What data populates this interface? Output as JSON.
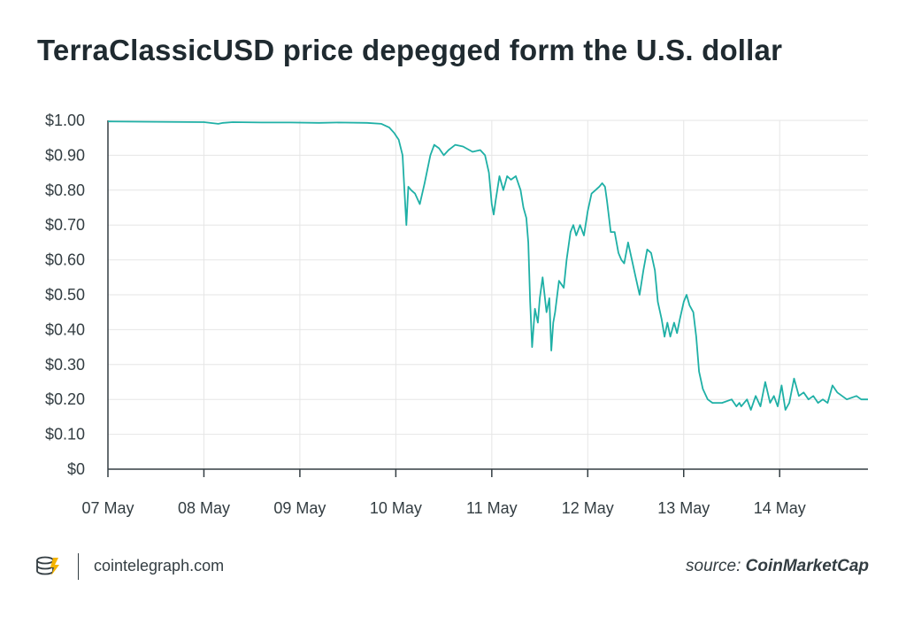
{
  "title": "TerraClassicUSD price depegged form the U.S. dollar",
  "colors": {
    "line": "#1fb0a6",
    "grid": "#e6e6e6",
    "axis": "#333d42",
    "text": "#1f2a30"
  },
  "footer": {
    "logo_icon": "cointelegraph-logo-icon",
    "site": "cointelegraph.com",
    "source_prefix": "source: ",
    "source_name": "CoinMarketCap"
  },
  "chart_data": {
    "type": "line",
    "title": "TerraClassicUSD price depegged form the U.S. dollar",
    "xlabel": "",
    "ylabel": "",
    "ylim": [
      0,
      1.0
    ],
    "xlim": [
      0,
      7.92
    ],
    "x_unit": "days since 07 May",
    "grid": true,
    "y_ticks": [
      0,
      0.1,
      0.2,
      0.3,
      0.4,
      0.5,
      0.6,
      0.7,
      0.8,
      0.9,
      1.0
    ],
    "y_tick_labels": [
      "$0",
      "$0.10",
      "$0.20",
      "$0.30",
      "$0.40",
      "$0.50",
      "$0.60",
      "$0.70",
      "$0.80",
      "$0.90",
      "$1.00"
    ],
    "x_ticks": [
      0,
      1,
      2,
      3,
      4,
      5,
      6,
      7
    ],
    "x_tick_labels": [
      "07 May",
      "08 May",
      "09 May",
      "10 May",
      "11 May",
      "12 May",
      "13 May",
      "14 May"
    ],
    "series": [
      {
        "name": "",
        "x": [
          0,
          0.5,
          1.0,
          1.15,
          1.2,
          1.3,
          1.6,
          1.9,
          2.2,
          2.4,
          2.7,
          2.85,
          2.93,
          2.98,
          3.03,
          3.07,
          3.09,
          3.11,
          3.13,
          3.16,
          3.2,
          3.25,
          3.3,
          3.36,
          3.4,
          3.45,
          3.5,
          3.55,
          3.62,
          3.7,
          3.8,
          3.88,
          3.93,
          3.97,
          4.0,
          4.02,
          4.04,
          4.08,
          4.12,
          4.16,
          4.2,
          4.25,
          4.3,
          4.33,
          4.36,
          4.38,
          4.4,
          4.42,
          4.45,
          4.48,
          4.5,
          4.53,
          4.55,
          4.57,
          4.6,
          4.62,
          4.64,
          4.66,
          4.7,
          4.75,
          4.78,
          4.82,
          4.85,
          4.88,
          4.92,
          4.96,
          5.0,
          5.04,
          5.08,
          5.12,
          5.15,
          5.18,
          5.2,
          5.24,
          5.28,
          5.32,
          5.35,
          5.38,
          5.42,
          5.46,
          5.5,
          5.54,
          5.58,
          5.62,
          5.66,
          5.7,
          5.73,
          5.77,
          5.8,
          5.83,
          5.86,
          5.9,
          5.93,
          5.96,
          6.0,
          6.03,
          6.06,
          6.1,
          6.13,
          6.16,
          6.2,
          6.25,
          6.3,
          6.4,
          6.5,
          6.55,
          6.58,
          6.6,
          6.63,
          6.66,
          6.7,
          6.75,
          6.8,
          6.85,
          6.9,
          6.94,
          6.98,
          7.02,
          7.06,
          7.1,
          7.15,
          7.2,
          7.25,
          7.3,
          7.35,
          7.4,
          7.45,
          7.5,
          7.55,
          7.6,
          7.7,
          7.8,
          7.85,
          7.92
        ],
        "values": [
          0.997,
          0.996,
          0.995,
          0.99,
          0.993,
          0.995,
          0.994,
          0.994,
          0.993,
          0.994,
          0.993,
          0.99,
          0.98,
          0.965,
          0.945,
          0.9,
          0.8,
          0.7,
          0.81,
          0.8,
          0.79,
          0.76,
          0.82,
          0.9,
          0.93,
          0.92,
          0.9,
          0.915,
          0.93,
          0.925,
          0.91,
          0.915,
          0.9,
          0.85,
          0.76,
          0.73,
          0.77,
          0.84,
          0.8,
          0.84,
          0.83,
          0.84,
          0.8,
          0.75,
          0.72,
          0.65,
          0.48,
          0.35,
          0.46,
          0.42,
          0.49,
          0.55,
          0.5,
          0.45,
          0.49,
          0.34,
          0.42,
          0.45,
          0.54,
          0.52,
          0.6,
          0.68,
          0.7,
          0.67,
          0.7,
          0.67,
          0.74,
          0.79,
          0.8,
          0.81,
          0.82,
          0.81,
          0.77,
          0.68,
          0.68,
          0.62,
          0.6,
          0.59,
          0.65,
          0.6,
          0.55,
          0.5,
          0.57,
          0.63,
          0.62,
          0.57,
          0.48,
          0.43,
          0.38,
          0.42,
          0.38,
          0.42,
          0.39,
          0.43,
          0.48,
          0.5,
          0.47,
          0.45,
          0.38,
          0.28,
          0.23,
          0.2,
          0.19,
          0.19,
          0.2,
          0.18,
          0.19,
          0.18,
          0.19,
          0.2,
          0.17,
          0.21,
          0.18,
          0.25,
          0.19,
          0.21,
          0.18,
          0.24,
          0.17,
          0.19,
          0.26,
          0.21,
          0.22,
          0.2,
          0.21,
          0.19,
          0.2,
          0.19,
          0.24,
          0.22,
          0.2,
          0.21,
          0.2,
          0.2
        ]
      }
    ]
  }
}
